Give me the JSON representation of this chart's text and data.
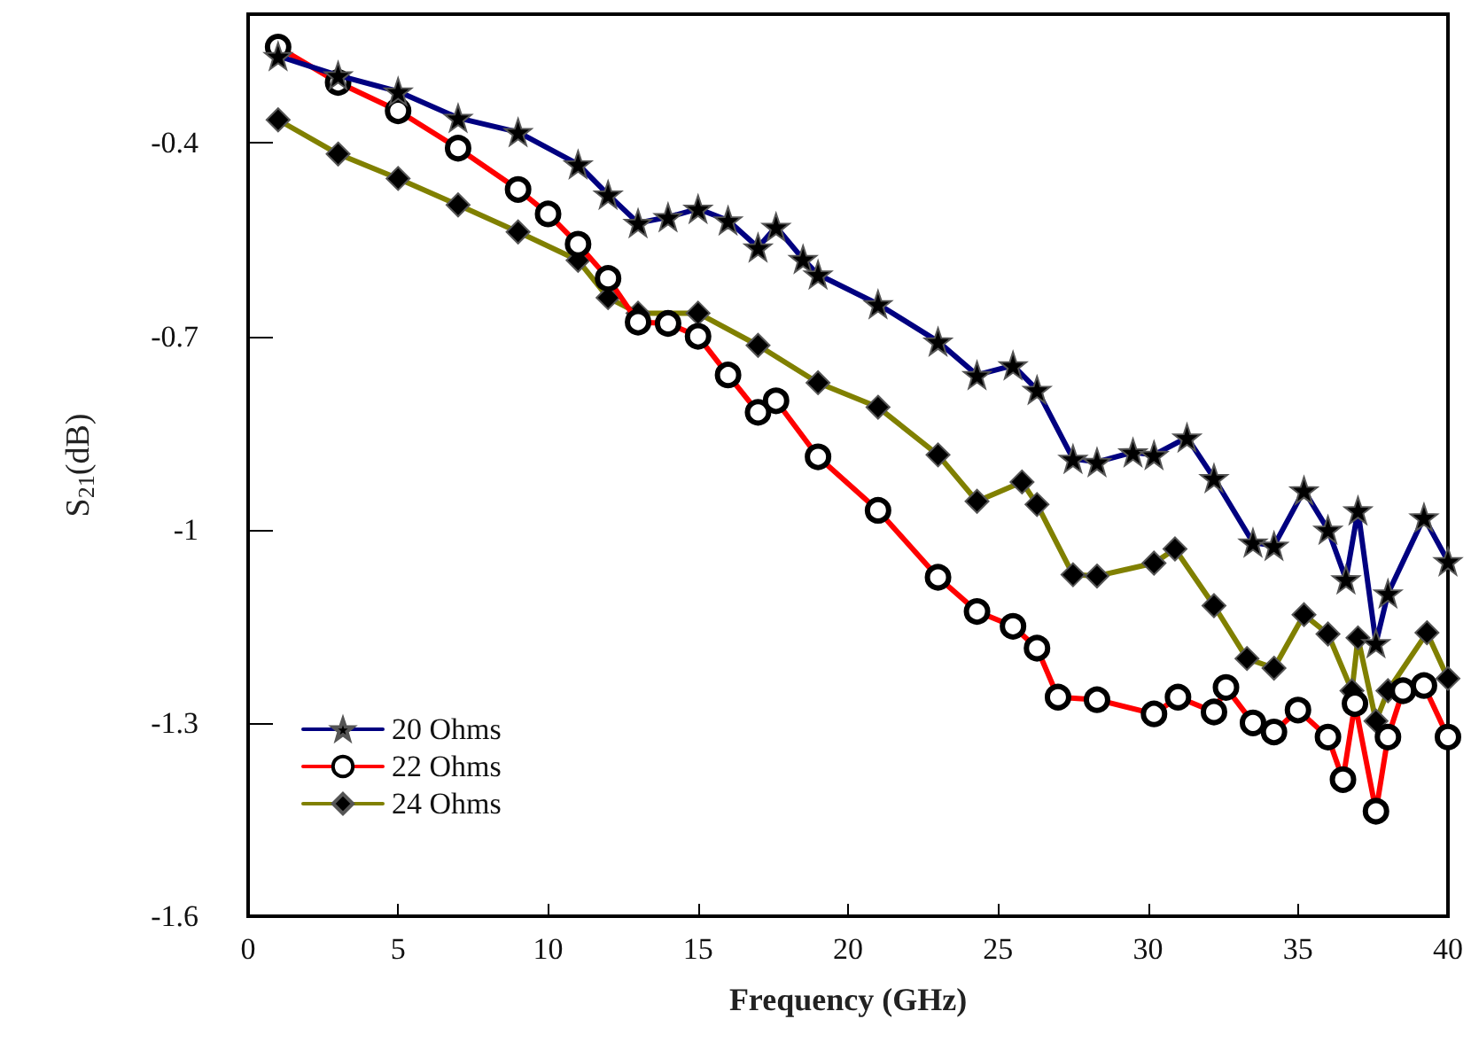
{
  "chart_data": {
    "type": "line",
    "xlabel": "Frequency (GHz)",
    "ylabel": "S$_{21}$(dB)",
    "xlim": [
      0,
      40
    ],
    "xticks": [
      0,
      5,
      10,
      15,
      20,
      25,
      30,
      35,
      40
    ],
    "ylim": [
      -1.6,
      -0.2
    ],
    "yticks": [
      -0.4,
      -0.7,
      -1,
      -1.3,
      -1.6
    ],
    "grid": false,
    "legend": "bottom left",
    "line_style": "solid",
    "series": [
      {
        "name": "20 Ohms",
        "color": "#000080",
        "marker": "star",
        "x": [
          1,
          3,
          5,
          7,
          9,
          11,
          12,
          13,
          14,
          15,
          16,
          17,
          17.6,
          18.5,
          19,
          21,
          23,
          24.3,
          25.5,
          26.3,
          27.5,
          28.3,
          29.5,
          30.2,
          31.3,
          32.2,
          33.5,
          34.2,
          35.2,
          36,
          36.6,
          37,
          37.6,
          38,
          39.2,
          40
        ],
        "values": [
          -0.265,
          -0.295,
          -0.32,
          -0.361,
          -0.383,
          -0.433,
          -0.48,
          -0.524,
          -0.515,
          -0.502,
          -0.52,
          -0.562,
          -0.53,
          -0.58,
          -0.604,
          -0.65,
          -0.708,
          -0.76,
          -0.745,
          -0.783,
          -0.89,
          -0.895,
          -0.88,
          -0.884,
          -0.857,
          -0.92,
          -1.02,
          -1.025,
          -0.939,
          -1.0,
          -1.077,
          -0.97,
          -1.176,
          -1.099,
          -0.981,
          -1.049
        ]
      },
      {
        "name": "22 Ohms",
        "color": "#ff0000",
        "marker": "circle",
        "x": [
          1,
          3,
          5,
          7,
          9,
          10,
          11,
          12,
          13,
          14,
          15,
          16,
          17,
          17.6,
          19,
          21,
          23,
          24.3,
          25.5,
          26.3,
          27,
          28.3,
          30.2,
          31,
          32.2,
          32.6,
          33.5,
          34.2,
          35,
          36,
          36.5,
          36.9,
          37.6,
          38,
          38.5,
          39.2,
          40
        ],
        "values": [
          -0.251,
          -0.306,
          -0.35,
          -0.408,
          -0.472,
          -0.51,
          -0.557,
          -0.61,
          -0.678,
          -0.68,
          -0.7,
          -0.76,
          -0.818,
          -0.8,
          -0.887,
          -0.97,
          -1.074,
          -1.127,
          -1.15,
          -1.184,
          -1.26,
          -1.264,
          -1.286,
          -1.26,
          -1.283,
          -1.245,
          -1.3,
          -1.314,
          -1.28,
          -1.322,
          -1.388,
          -1.27,
          -1.437,
          -1.322,
          -1.25,
          -1.242,
          -1.322
        ]
      },
      {
        "name": "24 Ohms",
        "color": "#808000",
        "marker": "diamond",
        "x": [
          1,
          3,
          5,
          7,
          9,
          11,
          12,
          13,
          15,
          17,
          19,
          21,
          23,
          24.3,
          25.8,
          26.3,
          27.5,
          28.3,
          30.2,
          30.9,
          32.2,
          33.3,
          34.2,
          35.2,
          36,
          36.8,
          37,
          37.6,
          38,
          39.3,
          40
        ],
        "values": [
          -0.364,
          -0.417,
          -0.455,
          -0.496,
          -0.538,
          -0.582,
          -0.64,
          -0.664,
          -0.664,
          -0.714,
          -0.772,
          -0.81,
          -0.884,
          -0.956,
          -0.926,
          -0.961,
          -1.07,
          -1.072,
          -1.052,
          -1.03,
          -1.118,
          -1.2,
          -1.215,
          -1.132,
          -1.162,
          -1.25,
          -1.168,
          -1.297,
          -1.25,
          -1.16,
          -1.231
        ]
      }
    ]
  }
}
